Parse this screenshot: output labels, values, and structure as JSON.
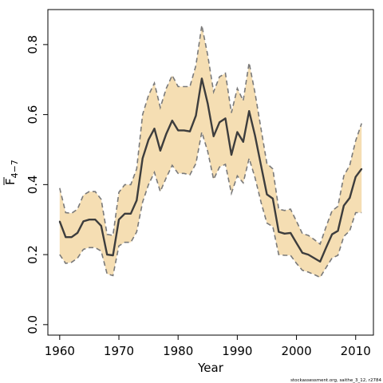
{
  "chart_data": {
    "type": "area",
    "title": "",
    "xlabel": "Year",
    "ylabel_main": "F",
    "ylabel_sub": "4−7",
    "xlim": [
      1958,
      2013
    ],
    "ylim": [
      -0.03,
      0.9
    ],
    "xticks": [
      1960,
      1970,
      1980,
      1990,
      2000,
      2010
    ],
    "yticks": [
      0.0,
      0.2,
      0.4,
      0.6,
      0.8
    ],
    "ytick_labels": [
      "0.0",
      "0.2",
      "0.4",
      "0.6",
      "0.8"
    ],
    "footnote": "stockassessment.org, saithe_3_12, r2784",
    "colors": {
      "band": "#f5deb3",
      "band_edge": "#7a7a7a",
      "line": "#3d3d3d"
    },
    "years": [
      1960,
      1961,
      1962,
      1963,
      1964,
      1965,
      1966,
      1967,
      1968,
      1969,
      1970,
      1971,
      1972,
      1973,
      1974,
      1975,
      1976,
      1977,
      1978,
      1979,
      1980,
      1981,
      1982,
      1983,
      1984,
      1985,
      1986,
      1987,
      1988,
      1989,
      1990,
      1991,
      1992,
      1993,
      1994,
      1995,
      1996,
      1997,
      1998,
      1999,
      2000,
      2001,
      2002,
      2003,
      2004,
      2005,
      2006,
      2007,
      2008,
      2009,
      2010,
      2011
    ],
    "estimate": [
      0.295,
      0.25,
      0.25,
      0.262,
      0.295,
      0.3,
      0.3,
      0.282,
      0.2,
      0.198,
      0.3,
      0.317,
      0.317,
      0.355,
      0.475,
      0.528,
      0.56,
      0.497,
      0.545,
      0.583,
      0.555,
      0.555,
      0.552,
      0.597,
      0.703,
      0.632,
      0.538,
      0.578,
      0.589,
      0.485,
      0.55,
      0.522,
      0.61,
      0.54,
      0.455,
      0.372,
      0.36,
      0.265,
      0.26,
      0.262,
      0.233,
      0.205,
      0.2,
      0.19,
      0.18,
      0.22,
      0.258,
      0.268,
      0.34,
      0.362,
      0.422,
      0.445
    ],
    "lower": [
      0.2,
      0.175,
      0.178,
      0.19,
      0.215,
      0.22,
      0.22,
      0.21,
      0.145,
      0.14,
      0.225,
      0.235,
      0.235,
      0.265,
      0.35,
      0.4,
      0.435,
      0.38,
      0.42,
      0.455,
      0.432,
      0.432,
      0.428,
      0.46,
      0.55,
      0.495,
      0.415,
      0.45,
      0.458,
      0.375,
      0.425,
      0.405,
      0.475,
      0.42,
      0.35,
      0.29,
      0.28,
      0.2,
      0.198,
      0.198,
      0.175,
      0.155,
      0.15,
      0.143,
      0.135,
      0.163,
      0.19,
      0.198,
      0.252,
      0.268,
      0.32,
      0.32
    ],
    "upper": [
      0.39,
      0.32,
      0.318,
      0.33,
      0.37,
      0.38,
      0.38,
      0.358,
      0.258,
      0.255,
      0.378,
      0.4,
      0.4,
      0.445,
      0.6,
      0.655,
      0.69,
      0.62,
      0.675,
      0.712,
      0.68,
      0.68,
      0.68,
      0.74,
      0.855,
      0.77,
      0.665,
      0.708,
      0.718,
      0.605,
      0.675,
      0.64,
      0.748,
      0.662,
      0.56,
      0.46,
      0.445,
      0.33,
      0.326,
      0.33,
      0.295,
      0.26,
      0.255,
      0.243,
      0.23,
      0.28,
      0.325,
      0.338,
      0.425,
      0.455,
      0.525,
      0.575
    ]
  }
}
